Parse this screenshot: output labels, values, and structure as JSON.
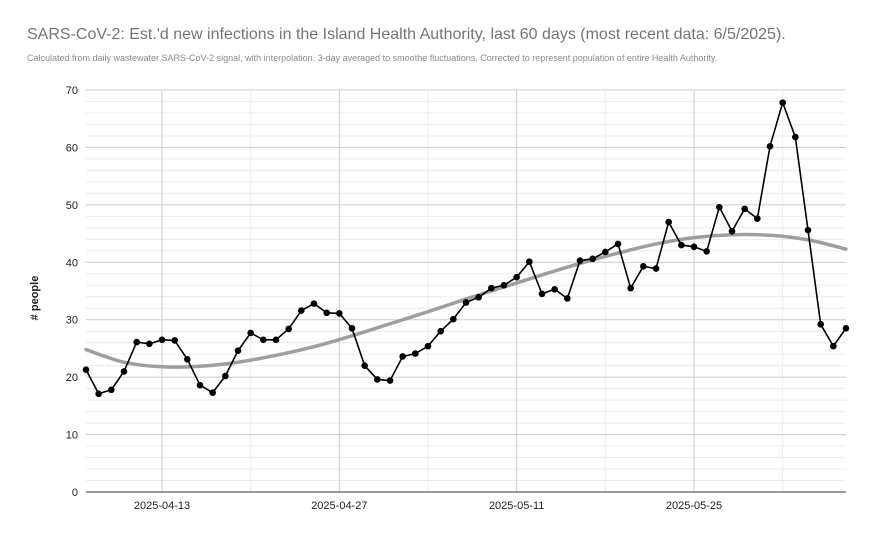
{
  "chart_data": {
    "type": "line",
    "title": "SARS-CoV-2: Est.'d new infections in the Island Health Authority, last 60 days (most recent data: 6/5/2025).",
    "subtitle": "Calculated from daily wastewater SARS-CoV-2 signal, with interpolation. 3-day averaged to smoothe fluctuations. Corrected to represent population of entire Health Authority.",
    "ylabel": "# people",
    "xlabel": "",
    "ylim": [
      0,
      70
    ],
    "yticks": [
      "0",
      "10",
      "20",
      "30",
      "40",
      "50",
      "60",
      "70"
    ],
    "xlim": [
      "2025-04-07",
      "2025-06-06"
    ],
    "xticks": [
      "2025-04-13",
      "2025-04-27",
      "2025-05-11",
      "2025-05-25"
    ],
    "grid": true,
    "legend": "none",
    "series": [
      {
        "style": "black-line-with-markers",
        "color": "#000000",
        "x": [
          "2025-04-07",
          "2025-04-08",
          "2025-04-09",
          "2025-04-10",
          "2025-04-11",
          "2025-04-12",
          "2025-04-13",
          "2025-04-14",
          "2025-04-15",
          "2025-04-16",
          "2025-04-17",
          "2025-04-18",
          "2025-04-19",
          "2025-04-20",
          "2025-04-21",
          "2025-04-22",
          "2025-04-23",
          "2025-04-24",
          "2025-04-25",
          "2025-04-26",
          "2025-04-27",
          "2025-04-28",
          "2025-04-29",
          "2025-04-30",
          "2025-05-01",
          "2025-05-02",
          "2025-05-03",
          "2025-05-04",
          "2025-05-05",
          "2025-05-06",
          "2025-05-07",
          "2025-05-08",
          "2025-05-09",
          "2025-05-10",
          "2025-05-11",
          "2025-05-12",
          "2025-05-13",
          "2025-05-14",
          "2025-05-15",
          "2025-05-16",
          "2025-05-17",
          "2025-05-18",
          "2025-05-19",
          "2025-05-20",
          "2025-05-21",
          "2025-05-22",
          "2025-05-23",
          "2025-05-24",
          "2025-05-25",
          "2025-05-26",
          "2025-05-27",
          "2025-05-28",
          "2025-05-29",
          "2025-05-30",
          "2025-05-31",
          "2025-06-01",
          "2025-06-02",
          "2025-06-03",
          "2025-06-04",
          "2025-06-05",
          "2025-06-06"
        ],
        "values": [
          21.3,
          17.1,
          17.8,
          21.0,
          26.1,
          25.8,
          26.5,
          26.4,
          23.1,
          18.6,
          17.3,
          20.2,
          24.6,
          27.7,
          26.5,
          26.5,
          28.4,
          31.6,
          32.8,
          31.2,
          31.1,
          28.5,
          22.0,
          19.6,
          19.4,
          23.6,
          24.1,
          25.4,
          28.0,
          30.1,
          33.0,
          33.9,
          35.5,
          36.0,
          37.4,
          40.1,
          34.5,
          35.3,
          33.7,
          40.3,
          40.6,
          41.8,
          43.2,
          35.5,
          39.3,
          38.9,
          47.0,
          43.0,
          42.7,
          41.9,
          49.6,
          45.4,
          49.3,
          47.6,
          60.2,
          67.8,
          61.8,
          45.6,
          29.2,
          25.4,
          28.5
        ]
      },
      {
        "style": "gray-trendline",
        "color": "#9e9e9e",
        "x": [
          "2025-04-07",
          "2025-04-10",
          "2025-04-13",
          "2025-04-16",
          "2025-04-19",
          "2025-04-22",
          "2025-04-25",
          "2025-04-28",
          "2025-05-01",
          "2025-05-04",
          "2025-05-07",
          "2025-05-10",
          "2025-05-13",
          "2025-05-16",
          "2025-05-19",
          "2025-05-22",
          "2025-05-25",
          "2025-05-28",
          "2025-05-31",
          "2025-06-03",
          "2025-06-06"
        ],
        "values": [
          24.8,
          22.6,
          21.8,
          21.9,
          22.6,
          23.8,
          25.3,
          27.2,
          29.3,
          31.4,
          33.6,
          35.7,
          37.8,
          39.8,
          41.6,
          43.2,
          44.3,
          44.8,
          44.7,
          43.9,
          42.3
        ]
      }
    ]
  }
}
